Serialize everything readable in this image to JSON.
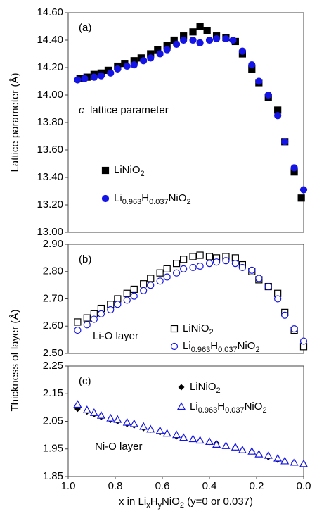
{
  "chart_data": [
    {
      "type": "scatter",
      "panel_label": "(a)",
      "y_label": "Lattice parameter (Å)",
      "annotations": [
        "c",
        "lattice parameter"
      ],
      "xlim": [
        1.0,
        0.0
      ],
      "ylim": [
        13.0,
        14.6
      ],
      "yticks": [
        {
          "value": 13.0,
          "label": "13.00"
        },
        {
          "value": 13.2,
          "label": "13.20"
        },
        {
          "value": 13.4,
          "label": "13.40"
        },
        {
          "value": 13.6,
          "label": "13.60"
        },
        {
          "value": 13.8,
          "label": "13.80"
        },
        {
          "value": 14.0,
          "label": "14.00"
        },
        {
          "value": 14.2,
          "label": "14.20"
        },
        {
          "value": 14.4,
          "label": "14.40"
        },
        {
          "value": 14.6,
          "label": "14.60"
        }
      ],
      "series": [
        {
          "name": "LiNiO2",
          "color": "#000000",
          "marker": "square",
          "filled": true,
          "x": [
            0.95,
            0.92,
            0.89,
            0.86,
            0.83,
            0.79,
            0.76,
            0.72,
            0.69,
            0.65,
            0.62,
            0.58,
            0.55,
            0.51,
            0.47,
            0.44,
            0.41,
            0.37,
            0.33,
            0.29,
            0.26,
            0.22,
            0.19,
            0.15,
            0.11,
            0.08,
            0.04,
            0.01
          ],
          "values": [
            14.12,
            14.13,
            14.15,
            14.16,
            14.18,
            14.21,
            14.23,
            14.25,
            14.27,
            14.3,
            14.33,
            14.36,
            14.4,
            14.43,
            14.46,
            14.5,
            14.47,
            14.43,
            14.42,
            14.39,
            14.3,
            14.19,
            14.09,
            13.98,
            13.89,
            13.66,
            13.44,
            13.25
          ]
        },
        {
          "name": "Li0.963H0.037NiO2",
          "color": "#1414e6",
          "marker": "circle",
          "filled": true,
          "x": [
            0.96,
            0.93,
            0.89,
            0.86,
            0.82,
            0.79,
            0.75,
            0.72,
            0.68,
            0.65,
            0.61,
            0.58,
            0.54,
            0.51,
            0.47,
            0.44,
            0.4,
            0.37,
            0.33,
            0.3,
            0.26,
            0.22,
            0.19,
            0.15,
            0.11,
            0.08,
            0.04,
            0.0
          ],
          "values": [
            14.11,
            14.12,
            14.13,
            14.14,
            14.16,
            14.19,
            14.21,
            14.22,
            14.25,
            14.27,
            14.3,
            14.33,
            14.37,
            14.4,
            14.4,
            14.38,
            14.4,
            14.41,
            14.41,
            14.4,
            14.32,
            14.22,
            14.1,
            14.0,
            13.85,
            13.66,
            13.47,
            13.31
          ]
        }
      ]
    },
    {
      "type": "scatter",
      "panel_label": "(b)",
      "y_label": "Thickness of layer (Å)",
      "annotations": [
        "Li-O layer"
      ],
      "xlim": [
        1.0,
        0.0
      ],
      "ylim": [
        2.5,
        2.9
      ],
      "yticks": [
        {
          "value": 2.5,
          "label": "2.50"
        },
        {
          "value": 2.6,
          "label": "2.60"
        },
        {
          "value": 2.7,
          "label": "2.70"
        },
        {
          "value": 2.8,
          "label": "2.80"
        },
        {
          "value": 2.9,
          "label": "2.90"
        }
      ],
      "series": [
        {
          "name": "LiNiO2",
          "color": "#000000",
          "marker": "square",
          "filled": false,
          "x": [
            0.96,
            0.92,
            0.89,
            0.86,
            0.82,
            0.79,
            0.75,
            0.72,
            0.68,
            0.65,
            0.61,
            0.58,
            0.54,
            0.51,
            0.47,
            0.44,
            0.4,
            0.37,
            0.33,
            0.29,
            0.26,
            0.22,
            0.19,
            0.15,
            0.11,
            0.08,
            0.04,
            0.0
          ],
          "values": [
            2.615,
            2.63,
            2.645,
            2.665,
            2.68,
            2.7,
            2.72,
            2.735,
            2.755,
            2.775,
            2.795,
            2.81,
            2.83,
            2.845,
            2.855,
            2.86,
            2.855,
            2.85,
            2.855,
            2.85,
            2.825,
            2.8,
            2.77,
            2.745,
            2.72,
            2.65,
            2.585,
            2.525
          ]
        },
        {
          "name": "Li0.963H0.037NiO2",
          "color": "#1414e6",
          "marker": "circle",
          "filled": false,
          "x": [
            0.96,
            0.92,
            0.89,
            0.86,
            0.82,
            0.79,
            0.75,
            0.72,
            0.68,
            0.65,
            0.61,
            0.58,
            0.54,
            0.51,
            0.47,
            0.44,
            0.4,
            0.37,
            0.33,
            0.29,
            0.26,
            0.22,
            0.19,
            0.15,
            0.11,
            0.08,
            0.04,
            0.0
          ],
          "values": [
            2.585,
            2.605,
            2.625,
            2.645,
            2.66,
            2.68,
            2.695,
            2.71,
            2.73,
            2.75,
            2.765,
            2.78,
            2.795,
            2.81,
            2.815,
            2.82,
            2.83,
            2.835,
            2.84,
            2.83,
            2.815,
            2.805,
            2.775,
            2.745,
            2.7,
            2.64,
            2.59,
            2.545
          ]
        }
      ]
    },
    {
      "type": "scatter",
      "panel_label": "(c)",
      "x_label": "x in LixHyNiO2 (y=0 or 0.037)",
      "annotations": [
        "Ni-O layer"
      ],
      "xlim": [
        1.0,
        0.0
      ],
      "xticks": [
        {
          "value": 1.0,
          "label": "1.0"
        },
        {
          "value": 0.8,
          "label": "0.8"
        },
        {
          "value": 0.6,
          "label": "0.6"
        },
        {
          "value": 0.4,
          "label": "0.4"
        },
        {
          "value": 0.2,
          "label": "0.2"
        },
        {
          "value": 0.0,
          "label": "0.0"
        }
      ],
      "ylim": [
        1.85,
        2.25
      ],
      "yticks": [
        1.85,
        1.95,
        2.05,
        2.15,
        2.25
      ],
      "series": [
        {
          "name": "LiNiO2",
          "color": "#000000",
          "marker": "diamond",
          "filled": true,
          "x": [
            0.96,
            0.92,
            0.89,
            0.86,
            0.82,
            0.79,
            0.75,
            0.72,
            0.68,
            0.65,
            0.61,
            0.58,
            0.54,
            0.51,
            0.47,
            0.44,
            0.4,
            0.37,
            0.33,
            0.29,
            0.26,
            0.22,
            0.19,
            0.15,
            0.11,
            0.08,
            0.04,
            0.0
          ],
          "values": [
            2.095,
            2.085,
            2.075,
            2.065,
            2.055,
            2.05,
            2.04,
            2.035,
            2.025,
            2.02,
            2.01,
            2.005,
            1.995,
            1.99,
            1.985,
            1.98,
            1.975,
            1.97,
            1.96,
            1.955,
            1.945,
            1.94,
            1.93,
            1.92,
            1.91,
            1.905,
            1.9,
            1.895
          ]
        },
        {
          "name": "Li0.963H0.037NiO2",
          "color": "#1414e6",
          "marker": "triangle",
          "filled": false,
          "x": [
            0.96,
            0.92,
            0.89,
            0.86,
            0.82,
            0.79,
            0.75,
            0.72,
            0.68,
            0.65,
            0.61,
            0.58,
            0.54,
            0.51,
            0.47,
            0.44,
            0.4,
            0.37,
            0.33,
            0.29,
            0.26,
            0.22,
            0.19,
            0.15,
            0.11,
            0.08,
            0.04,
            0.0
          ],
          "values": [
            2.11,
            2.09,
            2.08,
            2.07,
            2.06,
            2.055,
            2.045,
            2.04,
            2.03,
            2.02,
            2.015,
            2.005,
            2.0,
            1.99,
            1.985,
            1.98,
            1.975,
            1.965,
            1.96,
            1.955,
            1.945,
            1.94,
            1.93,
            1.925,
            1.915,
            1.905,
            1.9,
            1.895
          ]
        }
      ]
    }
  ]
}
